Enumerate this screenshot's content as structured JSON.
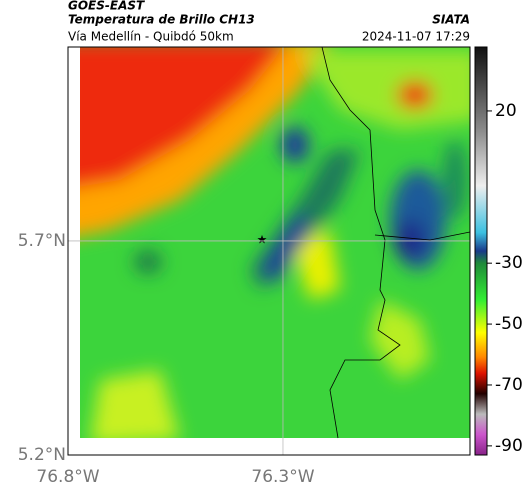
{
  "header": {
    "source": "GOES-EAST",
    "title": "Temperatura de Brillo CH13",
    "agency": "SIATA",
    "subtitle": "Vía Medellín - Quibdó 50km",
    "timestamp": "2024-11-07 17:29"
  },
  "map": {
    "xlim": [
      -76.8,
      -75.865
    ],
    "ylim": [
      5.2,
      6.153
    ],
    "xticks": [
      {
        "value": -76.8,
        "label": "76.8°W"
      },
      {
        "value": -76.3,
        "label": "76.3°W"
      }
    ],
    "yticks": [
      {
        "value": 5.2,
        "label": "5.2°N"
      },
      {
        "value": 5.7,
        "label": "5.7°N"
      }
    ],
    "grid": true
  },
  "colorbar": {
    "lim": [
      -93,
      41
    ],
    "ticks": [
      20,
      -30,
      -50,
      -70,
      -90
    ]
  }
}
